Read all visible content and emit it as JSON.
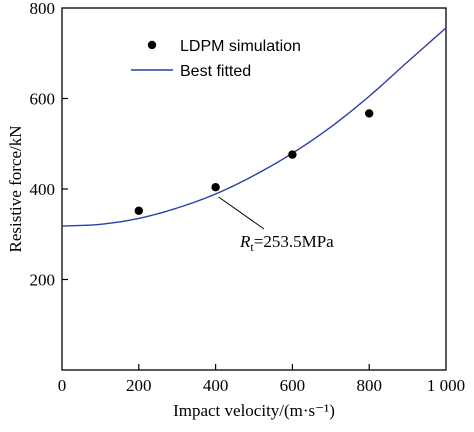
{
  "chart_data": {
    "type": "scatter",
    "xlabel": "Impact velocity/(m·s⁻¹)",
    "ylabel": "Resistive force/kN",
    "xlim": [
      0,
      1000
    ],
    "ylim": [
      0,
      800
    ],
    "xticks": [
      0,
      200,
      400,
      600,
      800,
      1000
    ],
    "xtick_labels": [
      "0",
      "200",
      "400",
      "600",
      "800",
      "1 000"
    ],
    "yticks": [
      200,
      400,
      600,
      800
    ],
    "ytick_labels": [
      "200",
      "400",
      "600",
      "800"
    ],
    "grid": false,
    "legend_position": "top-left",
    "series": [
      {
        "name": "LDPM simulation",
        "kind": "scatter",
        "color": "#000000",
        "x": [
          200,
          400,
          600,
          800
        ],
        "y": [
          352,
          404,
          476,
          567
        ]
      },
      {
        "name": "Best fitted",
        "kind": "line",
        "color": "#2b3fa8",
        "x": [
          0,
          100,
          200,
          300,
          400,
          500,
          600,
          700,
          800,
          900,
          1000
        ],
        "y": [
          318,
          322,
          335,
          358,
          389,
          430,
          479,
          537,
          605,
          681,
          756
        ]
      }
    ],
    "annotation": {
      "symbol": "R",
      "subscript": "t",
      "text": "=253.5MPa",
      "points_to": [
        400,
        389
      ]
    }
  }
}
